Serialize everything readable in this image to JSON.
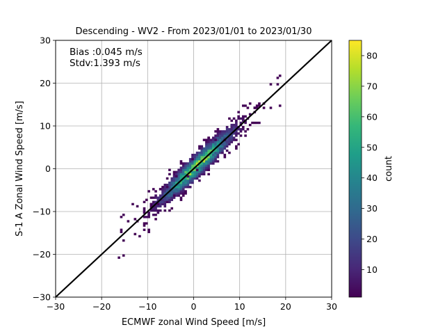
{
  "chart_data": {
    "type": "heatmap",
    "subtype": "2d-histogram scatter density",
    "title": "Descending - WV2 - From 2023/01/01 to 2023/01/30",
    "xlabel": "ECMWF zonal Wind Speed [m/s]",
    "ylabel": "S-1 A Zonal Wind Speed [m/s]",
    "xlim": [
      -30,
      30
    ],
    "ylim": [
      -30,
      30
    ],
    "xticks": [
      "−30",
      "−20",
      "−10",
      "0",
      "10",
      "20",
      "30"
    ],
    "yticks": [
      "−30",
      "−20",
      "−10",
      "0",
      "10",
      "20",
      "30"
    ],
    "grid": true,
    "annotations": [
      "Bias :0.045 m/s",
      "Stdv:1.393 m/s"
    ],
    "reference_line": {
      "type": "identity",
      "x": [
        -30,
        30
      ],
      "y": [
        -30,
        30
      ],
      "color": "#000000"
    },
    "colorbar": {
      "label": "count",
      "min": 1,
      "max": 85,
      "ticks": [
        "10",
        "20",
        "30",
        "40",
        "50",
        "60",
        "70",
        "80"
      ],
      "colormap": "viridis",
      "colors": [
        "#440154",
        "#482878",
        "#3e4989",
        "#31688e",
        "#26828e",
        "#1f9e89",
        "#35b779",
        "#6ece58",
        "#b5de2b",
        "#fde725"
      ]
    },
    "distribution": {
      "bin_size": 0.5,
      "center_line": {
        "slope": 1.0,
        "bias": 0.045
      },
      "spread_stdv": 1.393,
      "dense_range": [
        -10,
        10
      ],
      "peak_count": 85
    }
  }
}
